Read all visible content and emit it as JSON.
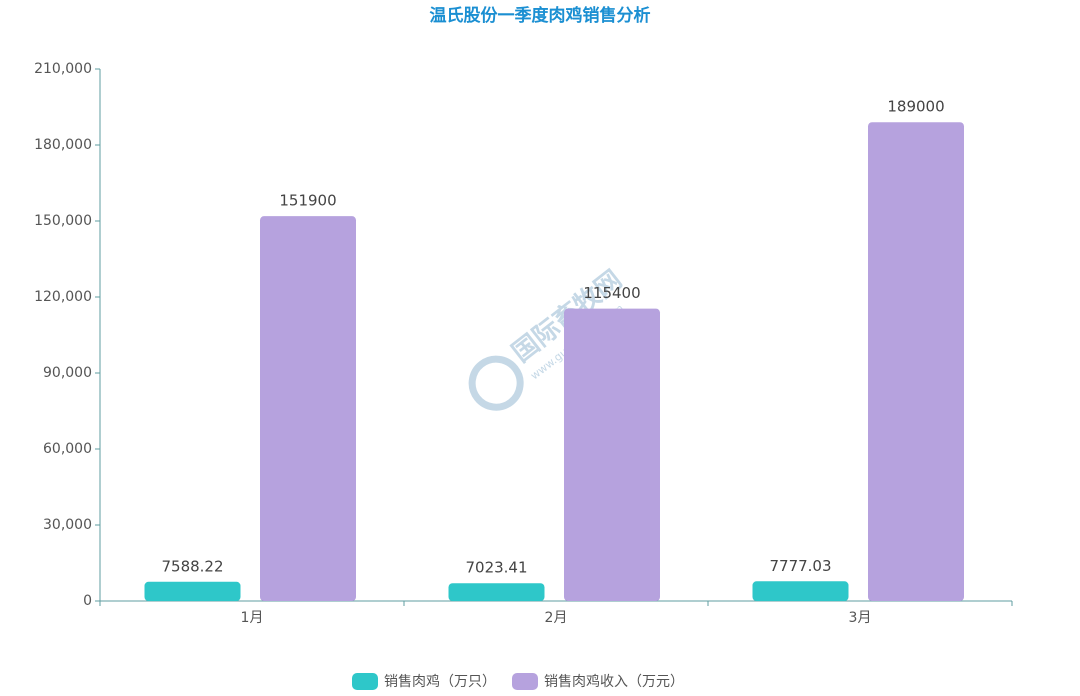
{
  "chart_data": {
    "type": "bar",
    "title": "温氏股份一季度肉鸡销售分析",
    "categories": [
      "1月",
      "2月",
      "3月"
    ],
    "series": [
      {
        "name": "销售肉鸡（万只）",
        "color": "#2ec7c9",
        "values": [
          7588.22,
          7023.41,
          7777.03
        ]
      },
      {
        "name": "销售肉鸡收入（万元）",
        "color": "#b6a2de",
        "values": [
          151900,
          115400,
          189000
        ]
      }
    ],
    "ylim": [
      0,
      210000
    ],
    "yticks": [
      0,
      {
        "value": 30000,
        "label": "30,000"
      },
      {
        "value": 60000,
        "label": "60,000"
      },
      {
        "value": 90000,
        "label": "90,000"
      },
      {
        "value": 120000,
        "label": "120,000"
      },
      {
        "value": 150000,
        "label": "150,000"
      },
      {
        "value": 180000,
        "label": "180,000"
      },
      {
        "value": 210000,
        "label": "210,000"
      }
    ],
    "legend": "bottom",
    "watermark": {
      "title": "国际畜牧网",
      "url": "www.guojixumu.com"
    }
  }
}
